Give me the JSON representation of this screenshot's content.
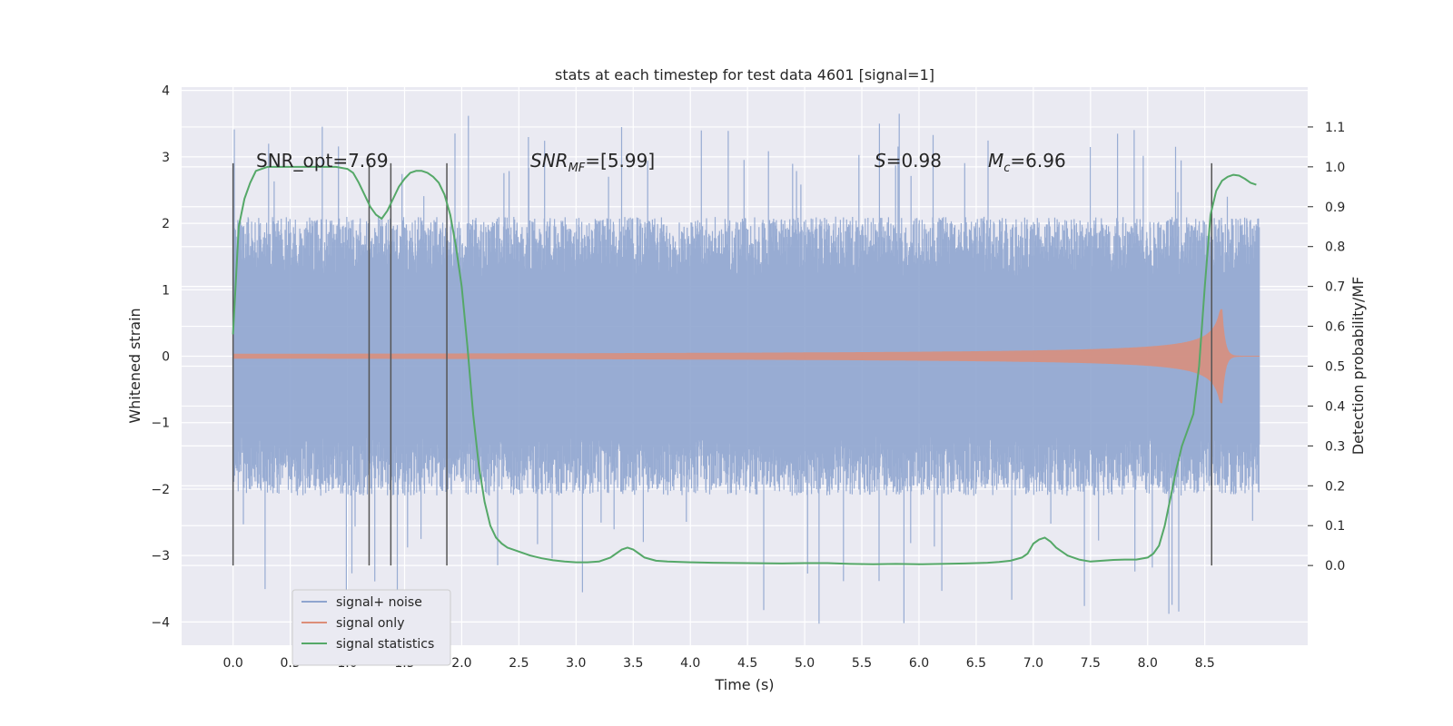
{
  "chart_data": {
    "type": "line",
    "title": "stats at each timestep for test data 4601 [signal=1]",
    "xlabel": "Time (s)",
    "ylabel": "Whitened strain",
    "ylabel_right": "Detection probability/MF",
    "xlim": [
      -0.45,
      9.4
    ],
    "ylim": [
      -4.35,
      4.05
    ],
    "ylim_right": [
      -0.2,
      1.2
    ],
    "x_ticks": [
      0.0,
      0.5,
      1.0,
      1.5,
      2.0,
      2.5,
      3.0,
      3.5,
      4.0,
      4.5,
      5.0,
      5.5,
      6.0,
      6.5,
      7.0,
      7.5,
      8.0,
      8.5
    ],
    "x_tick_labels": [
      "0.0",
      "0.5",
      "1.0",
      "1.5",
      "2.0",
      "2.5",
      "3.0",
      "3.5",
      "4.0",
      "4.5",
      "5.0",
      "5.5",
      "6.0",
      "6.5",
      "7.0",
      "7.5",
      "8.0",
      "8.5"
    ],
    "y_ticks": [
      -4,
      -3,
      -2,
      -1,
      0,
      1,
      2,
      3,
      4
    ],
    "y_tick_labels": [
      "−4",
      "−3",
      "−2",
      "−1",
      "0",
      "1",
      "2",
      "3",
      "4"
    ],
    "y_right_ticks": [
      0.0,
      0.1,
      0.2,
      0.3,
      0.4,
      0.5,
      0.6,
      0.7,
      0.8,
      0.9,
      1.0,
      1.1
    ],
    "y_right_tick_labels": [
      "0.0",
      "0.1",
      "0.2",
      "0.3",
      "0.4",
      "0.5",
      "0.6",
      "0.7",
      "0.8",
      "0.9",
      "1.0",
      "1.1"
    ],
    "grid": true,
    "legend_position": "lower-left",
    "annotations": {
      "snr_opt": "SNR_opt=7.69",
      "snr_mf_main": "SNR",
      "snr_mf_sub": "MF",
      "snr_mf_value": "=[5.99]",
      "s_main": "S",
      "s_value": "=0.98",
      "mc_main": "M",
      "mc_sub": "c",
      "mc_value": "=6.96"
    },
    "vertical_lines_x": [
      0.0,
      1.19,
      1.38,
      1.87,
      8.56
    ],
    "series": [
      {
        "name": "signal+ noise",
        "color": "#8fa5cf",
        "kind": "noise",
        "x_range": [
          0.0,
          8.98
        ],
        "amplitude_band": [
          -2.0,
          2.0
        ],
        "peak_max": 3.65,
        "peak_min": -4.05
      },
      {
        "name": "signal only",
        "color": "#dd8e79",
        "kind": "chirp",
        "x_range": [
          0.0,
          8.98
        ],
        "merger_time": 8.65,
        "peak_amplitude": 0.7
      },
      {
        "name": "signal statistics",
        "color": "#55a868",
        "axis": "right",
        "x": [
          0.0,
          0.05,
          0.1,
          0.15,
          0.2,
          0.3,
          0.5,
          0.7,
          0.9,
          1.0,
          1.05,
          1.1,
          1.15,
          1.2,
          1.25,
          1.3,
          1.35,
          1.4,
          1.45,
          1.5,
          1.55,
          1.6,
          1.65,
          1.7,
          1.75,
          1.8,
          1.85,
          1.9,
          1.95,
          2.0,
          2.05,
          2.1,
          2.15,
          2.2,
          2.25,
          2.3,
          2.35,
          2.4,
          2.5,
          2.6,
          2.7,
          2.8,
          2.9,
          3.0,
          3.1,
          3.2,
          3.3,
          3.35,
          3.4,
          3.45,
          3.5,
          3.55,
          3.6,
          3.7,
          3.8,
          4.0,
          4.2,
          4.5,
          4.8,
          5.0,
          5.2,
          5.4,
          5.6,
          5.8,
          6.0,
          6.2,
          6.4,
          6.6,
          6.7,
          6.8,
          6.9,
          6.95,
          7.0,
          7.05,
          7.1,
          7.15,
          7.2,
          7.3,
          7.4,
          7.5,
          7.6,
          7.7,
          7.8,
          7.9,
          8.0,
          8.05,
          8.1,
          8.15,
          8.2,
          8.25,
          8.3,
          8.35,
          8.4,
          8.45,
          8.5,
          8.55,
          8.6,
          8.65,
          8.7,
          8.75,
          8.8,
          8.85,
          8.9,
          8.95
        ],
        "y": [
          0.58,
          0.85,
          0.92,
          0.96,
          0.99,
          1.0,
          1.0,
          1.0,
          1.0,
          0.995,
          0.985,
          0.96,
          0.93,
          0.9,
          0.88,
          0.87,
          0.89,
          0.92,
          0.95,
          0.97,
          0.985,
          0.99,
          0.99,
          0.985,
          0.975,
          0.96,
          0.93,
          0.88,
          0.8,
          0.7,
          0.55,
          0.38,
          0.25,
          0.16,
          0.1,
          0.07,
          0.055,
          0.045,
          0.035,
          0.025,
          0.018,
          0.013,
          0.01,
          0.008,
          0.008,
          0.01,
          0.02,
          0.03,
          0.04,
          0.045,
          0.04,
          0.03,
          0.02,
          0.012,
          0.01,
          0.008,
          0.007,
          0.006,
          0.005,
          0.006,
          0.006,
          0.004,
          0.003,
          0.004,
          0.003,
          0.004,
          0.005,
          0.007,
          0.009,
          0.012,
          0.02,
          0.03,
          0.055,
          0.065,
          0.07,
          0.06,
          0.045,
          0.025,
          0.015,
          0.01,
          0.012,
          0.014,
          0.015,
          0.015,
          0.02,
          0.03,
          0.05,
          0.1,
          0.17,
          0.24,
          0.3,
          0.34,
          0.38,
          0.5,
          0.7,
          0.88,
          0.94,
          0.965,
          0.975,
          0.98,
          0.978,
          0.97,
          0.96,
          0.955
        ]
      }
    ]
  }
}
